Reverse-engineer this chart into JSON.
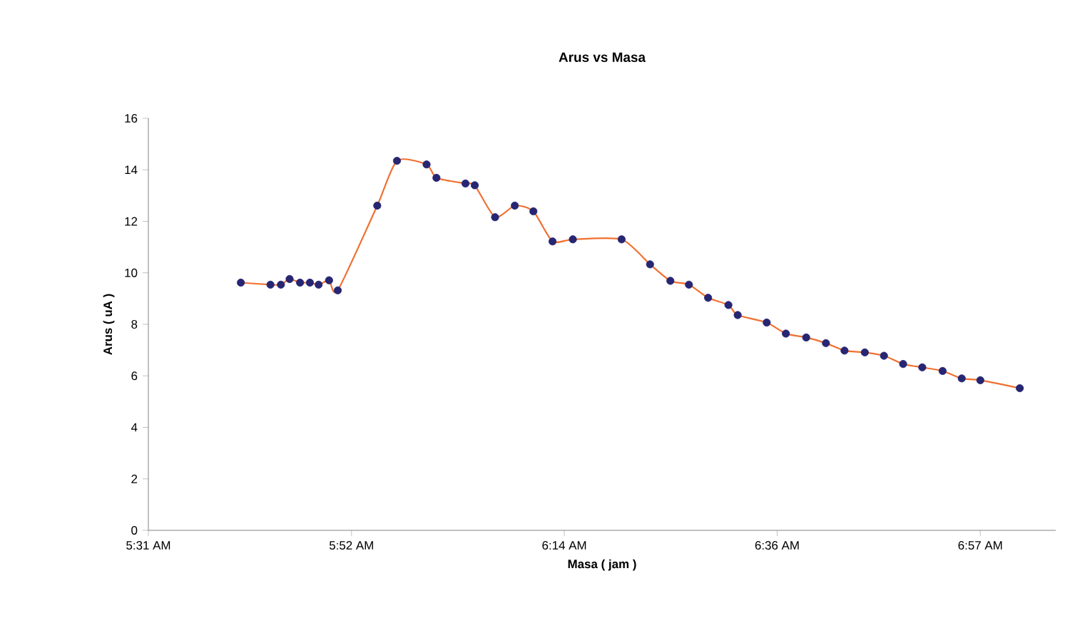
{
  "chart_data": {
    "type": "line",
    "title": "Arus vs Masa",
    "xlabel": "Masa ( jam )",
    "ylabel": "Arus ( uA )",
    "xlim": [
      5.5167,
      7.08
    ],
    "xticks": [
      {
        "value": 5.5167,
        "label": "5:31 AM"
      },
      {
        "value": 5.8667,
        "label": "5:52 AM"
      },
      {
        "value": 6.2333,
        "label": "6:14 AM"
      },
      {
        "value": 6.6,
        "label": "6:36 AM"
      },
      {
        "value": 6.95,
        "label": "6:57 AM"
      }
    ],
    "ylim": [
      0,
      16
    ],
    "yticks": [
      0,
      2,
      4,
      6,
      8,
      10,
      12,
      14,
      16
    ],
    "grid": false,
    "legend": false,
    "line_style": "solid",
    "series": [
      {
        "marker": "none",
        "color": "#f07030",
        "x": [
          5.676,
          5.727,
          5.745,
          5.76,
          5.778,
          5.795,
          5.81,
          5.828,
          5.843,
          5.911,
          5.945,
          5.996,
          6.013,
          6.063,
          6.079,
          6.114,
          6.148,
          6.18,
          6.213,
          6.248,
          6.332,
          6.381,
          6.416,
          6.448,
          6.481,
          6.516,
          6.532,
          6.582,
          6.615,
          6.65,
          6.684,
          6.716,
          6.751,
          6.784,
          6.817,
          6.85,
          6.885,
          6.918,
          6.95,
          7.018
        ],
        "values": [
          9.62,
          9.54,
          9.54,
          9.76,
          9.62,
          9.62,
          9.54,
          9.71,
          9.32,
          12.61,
          14.35,
          14.21,
          13.69,
          13.47,
          13.4,
          12.16,
          12.61,
          12.39,
          11.22,
          11.3,
          11.3,
          10.33,
          9.69,
          9.54,
          9.03,
          8.75,
          8.36,
          8.07,
          7.64,
          7.49,
          7.27,
          6.98,
          6.91,
          6.78,
          6.46,
          6.33,
          6.19,
          5.9,
          5.83,
          5.52
        ]
      },
      {
        "type": "scatter",
        "marker": "circle",
        "color": "#262673",
        "x": [
          5.676,
          5.727,
          5.745,
          5.76,
          5.778,
          5.795,
          5.81,
          5.828,
          5.843,
          5.911,
          5.945,
          5.996,
          6.013,
          6.063,
          6.079,
          6.114,
          6.148,
          6.18,
          6.213,
          6.248,
          6.332,
          6.381,
          6.416,
          6.448,
          6.481,
          6.516,
          6.532,
          6.582,
          6.615,
          6.65,
          6.684,
          6.716,
          6.751,
          6.784,
          6.817,
          6.85,
          6.885,
          6.918,
          6.95,
          7.018
        ],
        "values": [
          9.62,
          9.54,
          9.54,
          9.76,
          9.62,
          9.62,
          9.54,
          9.71,
          9.32,
          12.61,
          14.35,
          14.21,
          13.69,
          13.47,
          13.4,
          12.16,
          12.61,
          12.39,
          11.22,
          11.3,
          11.3,
          10.33,
          9.69,
          9.54,
          9.03,
          8.75,
          8.36,
          8.07,
          7.64,
          7.49,
          7.27,
          6.98,
          6.91,
          6.78,
          6.46,
          6.33,
          6.19,
          5.9,
          5.83,
          5.52
        ]
      }
    ]
  }
}
